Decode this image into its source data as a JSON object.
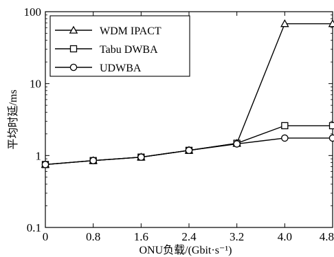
{
  "chart_data": {
    "type": "line",
    "xlabel": "ONU负载/(Gbit·s⁻¹)",
    "ylabel": "平均时延/ms",
    "x": [
      0,
      0.8,
      1.6,
      2.4,
      3.2,
      4.0,
      4.8
    ],
    "x_tick_labels": [
      "0",
      "0.8",
      "1.6",
      "2.4",
      "3.2",
      "4.0",
      "4.8"
    ],
    "xlim": [
      0,
      4.8
    ],
    "y_scale": "log",
    "ylim": [
      0.1,
      100
    ],
    "y_ticks": [
      0.1,
      1,
      10,
      100
    ],
    "y_tick_labels": [
      "0.1",
      "1",
      "10",
      "100"
    ],
    "grid": false,
    "legend_position": "top-left",
    "series": [
      {
        "name": "WDM IPACT",
        "marker": "triangle",
        "values": [
          0.75,
          0.85,
          0.95,
          1.18,
          1.48,
          68,
          68
        ]
      },
      {
        "name": "Tabu DWBA",
        "marker": "square",
        "values": [
          0.75,
          0.85,
          0.95,
          1.18,
          1.48,
          2.6,
          2.6
        ]
      },
      {
        "name": "UDWBA",
        "marker": "circle",
        "values": [
          0.75,
          0.85,
          0.95,
          1.18,
          1.45,
          1.75,
          1.75
        ]
      }
    ]
  }
}
